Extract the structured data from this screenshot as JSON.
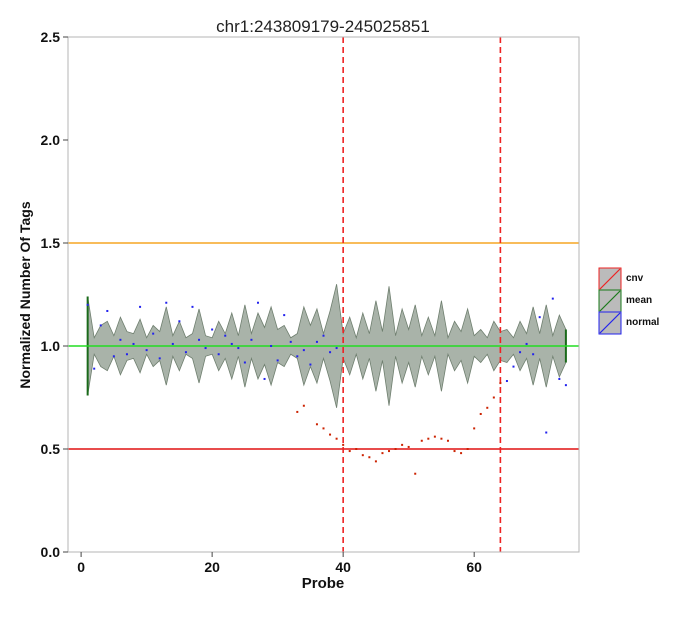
{
  "chart_data": {
    "type": "scatter",
    "title": "chr1:243809179-245025851",
    "xlabel": "Probe",
    "ylabel": "Normalized Number Of Tags",
    "xlim": [
      -2,
      76
    ],
    "ylim": [
      0,
      2.5
    ],
    "x_ticks": [
      0,
      20,
      40,
      60
    ],
    "x_tick_labels": [
      "0",
      "20",
      "40",
      "60"
    ],
    "y_ticks": [
      0,
      0.5,
      1.0,
      1.5,
      2.0,
      2.5
    ],
    "y_tick_labels": [
      "0.0",
      "0.5",
      "1.0",
      "1.5",
      "2.0",
      "2.5"
    ],
    "grid": false,
    "legend_position": "right",
    "legend": [
      {
        "label": "cnv",
        "color": "#ee2222"
      },
      {
        "label": "mean",
        "color": "#1a7a1a"
      },
      {
        "label": "normal",
        "color": "#2222ee"
      }
    ],
    "colors": {
      "band_fill": "#a9b3a9",
      "band_edge": "#6f7f6f",
      "mean_line": "#22dd22",
      "upper_threshold": "#f5a623",
      "lower_threshold": "#e01010",
      "boundary": "#ee2222",
      "cnv": "#cc2200",
      "normal": "#2222ee"
    },
    "hlines": [
      {
        "name": "upper",
        "y": 1.5
      },
      {
        "name": "mean",
        "y": 1.0
      },
      {
        "name": "lower",
        "y": 0.5
      }
    ],
    "vlines": [
      40,
      64
    ],
    "band": {
      "x": [
        1,
        2,
        3,
        4,
        5,
        6,
        7,
        8,
        9,
        10,
        11,
        12,
        13,
        14,
        15,
        16,
        17,
        18,
        19,
        20,
        21,
        22,
        23,
        24,
        25,
        26,
        27,
        28,
        29,
        30,
        31,
        32,
        33,
        34,
        35,
        36,
        37,
        38,
        39,
        40,
        41,
        42,
        43,
        44,
        45,
        46,
        47,
        48,
        49,
        50,
        51,
        52,
        53,
        54,
        55,
        56,
        57,
        58,
        59,
        60,
        61,
        62,
        63,
        64,
        65,
        66,
        67,
        68,
        69,
        70,
        71,
        72,
        73,
        74
      ],
      "upper": [
        1.24,
        1.04,
        1.1,
        1.12,
        1.05,
        1.14,
        1.07,
        1.06,
        1.13,
        1.04,
        1.1,
        1.07,
        1.19,
        1.05,
        1.12,
        1.04,
        1.06,
        1.18,
        1.05,
        1.04,
        1.12,
        1.06,
        1.16,
        1.05,
        1.2,
        1.06,
        1.16,
        1.09,
        1.19,
        1.08,
        1.1,
        1.04,
        1.06,
        1.19,
        1.1,
        1.18,
        1.06,
        1.17,
        1.3,
        1.06,
        1.14,
        1.04,
        1.16,
        1.06,
        1.22,
        1.07,
        1.29,
        1.05,
        1.18,
        1.08,
        1.2,
        1.05,
        1.14,
        1.05,
        1.22,
        1.04,
        1.12,
        1.07,
        1.18,
        1.05,
        1.08,
        1.04,
        1.12,
        1.07,
        1.08,
        1.04,
        1.12,
        1.06,
        1.19,
        1.06,
        1.2,
        1.05,
        1.15,
        1.08
      ],
      "lower": [
        0.76,
        0.96,
        0.9,
        0.88,
        0.95,
        0.86,
        0.93,
        0.94,
        0.87,
        0.96,
        0.9,
        0.93,
        0.81,
        0.95,
        0.88,
        0.96,
        0.94,
        0.82,
        0.95,
        0.96,
        0.88,
        0.94,
        0.84,
        0.95,
        0.8,
        0.94,
        0.84,
        0.91,
        0.81,
        0.92,
        0.9,
        0.96,
        0.94,
        0.81,
        0.9,
        0.82,
        0.94,
        0.83,
        0.7,
        0.94,
        0.86,
        0.96,
        0.84,
        0.94,
        0.78,
        0.93,
        0.71,
        0.95,
        0.82,
        0.92,
        0.8,
        0.95,
        0.86,
        0.95,
        0.78,
        0.96,
        0.88,
        0.93,
        0.82,
        0.95,
        0.92,
        0.96,
        0.88,
        0.93,
        0.92,
        0.96,
        0.88,
        0.94,
        0.81,
        0.94,
        0.8,
        0.95,
        0.85,
        0.92
      ]
    },
    "series": [
      {
        "name": "normal",
        "color": "#2222ee",
        "points": [
          [
            1,
            1.2
          ],
          [
            2,
            0.89
          ],
          [
            3,
            1.1
          ],
          [
            4,
            1.17
          ],
          [
            5,
            0.95
          ],
          [
            6,
            1.03
          ],
          [
            7,
            0.96
          ],
          [
            8,
            1.01
          ],
          [
            9,
            1.19
          ],
          [
            10,
            0.98
          ],
          [
            11,
            1.06
          ],
          [
            12,
            0.94
          ],
          [
            13,
            1.21
          ],
          [
            14,
            1.01
          ],
          [
            15,
            1.12
          ],
          [
            16,
            0.97
          ],
          [
            17,
            1.19
          ],
          [
            18,
            1.03
          ],
          [
            19,
            0.99
          ],
          [
            20,
            1.08
          ],
          [
            21,
            0.96
          ],
          [
            22,
            1.05
          ],
          [
            23,
            1.01
          ],
          [
            24,
            0.99
          ],
          [
            25,
            0.92
          ],
          [
            26,
            1.03
          ],
          [
            27,
            1.21
          ],
          [
            28,
            0.84
          ],
          [
            29,
            1.0
          ],
          [
            30,
            0.93
          ],
          [
            31,
            1.15
          ],
          [
            32,
            1.02
          ],
          [
            33,
            0.95
          ],
          [
            34,
            0.98
          ],
          [
            35,
            0.91
          ],
          [
            36,
            1.02
          ],
          [
            37,
            1.05
          ],
          [
            38,
            0.97
          ],
          [
            39,
            0.99
          ],
          [
            65,
            0.83
          ],
          [
            66,
            0.9
          ],
          [
            67,
            0.97
          ],
          [
            68,
            1.01
          ],
          [
            69,
            0.96
          ],
          [
            70,
            1.14
          ],
          [
            71,
            0.58
          ],
          [
            72,
            1.23
          ],
          [
            73,
            0.84
          ],
          [
            74,
            0.81
          ]
        ]
      },
      {
        "name": "cnv",
        "color": "#cc2200",
        "points": [
          [
            33,
            0.68
          ],
          [
            34,
            0.71
          ],
          [
            36,
            0.62
          ],
          [
            37,
            0.6
          ],
          [
            38,
            0.57
          ],
          [
            39,
            0.55
          ],
          [
            40,
            0.52
          ],
          [
            41,
            0.49
          ],
          [
            42,
            0.5
          ],
          [
            43,
            0.47
          ],
          [
            44,
            0.46
          ],
          [
            45,
            0.44
          ],
          [
            46,
            0.48
          ],
          [
            47,
            0.49
          ],
          [
            48,
            0.5
          ],
          [
            49,
            0.52
          ],
          [
            50,
            0.51
          ],
          [
            51,
            0.38
          ],
          [
            52,
            0.54
          ],
          [
            53,
            0.55
          ],
          [
            54,
            0.56
          ],
          [
            55,
            0.55
          ],
          [
            56,
            0.54
          ],
          [
            57,
            0.49
          ],
          [
            58,
            0.48
          ],
          [
            59,
            0.5
          ],
          [
            60,
            0.6
          ],
          [
            61,
            0.67
          ],
          [
            62,
            0.7
          ],
          [
            63,
            0.75
          ],
          [
            64,
            0.82
          ]
        ]
      }
    ]
  }
}
